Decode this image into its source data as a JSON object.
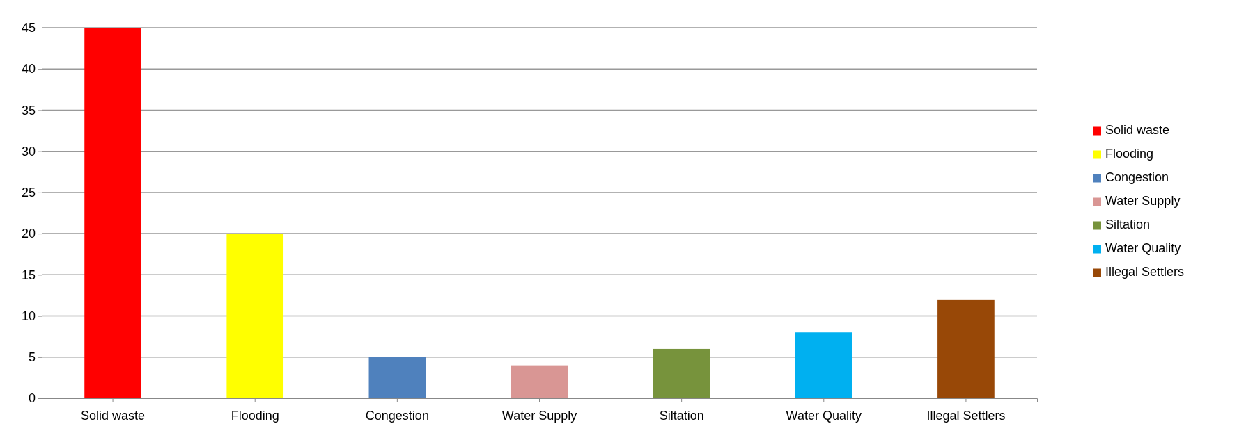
{
  "chart_data": {
    "type": "bar",
    "categories": [
      "Solid waste",
      "Flooding",
      "Congestion",
      "Water Supply",
      "Siltation",
      "Water Quality",
      "Illegal Settlers"
    ],
    "series": [
      {
        "name": "Solid waste",
        "color": "#ff0000",
        "values": [
          45,
          null,
          null,
          null,
          null,
          null,
          null
        ]
      },
      {
        "name": "Flooding",
        "color": "#ffff00",
        "values": [
          null,
          20,
          null,
          null,
          null,
          null,
          null
        ]
      },
      {
        "name": "Congestion",
        "color": "#4f81bd",
        "values": [
          null,
          null,
          5,
          null,
          null,
          null,
          null
        ]
      },
      {
        "name": "Water Supply",
        "color": "#d99694",
        "values": [
          null,
          null,
          null,
          4,
          null,
          null,
          null
        ]
      },
      {
        "name": "Siltation",
        "color": "#77933c",
        "values": [
          null,
          null,
          null,
          null,
          6,
          null,
          null
        ]
      },
      {
        "name": "Water Quality",
        "color": "#00b0f0",
        "values": [
          null,
          null,
          null,
          null,
          null,
          8,
          null
        ]
      },
      {
        "name": "Illegal Settlers",
        "color": "#984807",
        "values": [
          null,
          null,
          null,
          null,
          null,
          null,
          12
        ]
      }
    ],
    "ylim": [
      0,
      45
    ],
    "yticks": [
      0,
      5,
      10,
      15,
      20,
      25,
      30,
      35,
      40,
      45
    ],
    "grid": "y",
    "legend": "right"
  }
}
